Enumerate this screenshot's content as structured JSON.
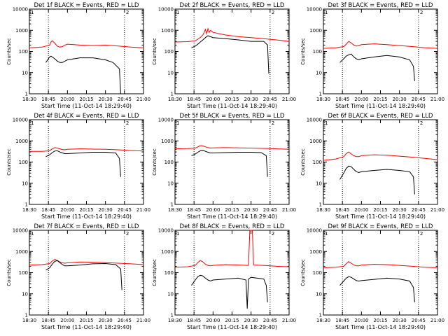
{
  "chart_data": [
    {
      "type": "line",
      "title": "Det 1f BLACK = Events, RED = LLD",
      "xlabel": "Start Time (11-Oct-14 18:29:40)",
      "ylabel": "Counts/sec",
      "ylim": [
        1,
        10000
      ],
      "yscale": "log",
      "x_tick_labels": [
        "18:30",
        "18:45",
        "20:00",
        "20:15",
        "20:30",
        "20:45",
        "21:00"
      ],
      "y_tick_labels": [
        "1",
        "10",
        "100",
        "1000",
        "10000"
      ],
      "markers": [
        "1",
        "2"
      ],
      "vlines": [
        "18:45",
        "20:45"
      ],
      "grid": false,
      "series": [
        {
          "color": "#ff0000",
          "x": [
            "18:30",
            "18:40",
            "18:50",
            "18:55",
            "19:00",
            "19:10",
            "19:20",
            "19:30",
            "19:40",
            "19:50",
            "20:00",
            "20:10",
            "20:20",
            "20:30",
            "20:40",
            "20:50",
            "21:00",
            "21:05"
          ],
          "values": [
            150,
            160,
            200,
            280,
            320,
            250,
            180,
            160,
            170,
            200,
            220,
            200,
            190,
            200,
            180,
            160,
            150,
            150
          ]
        },
        {
          "color": "#000000",
          "x": [
            "18:43",
            "18:50",
            "18:55",
            "19:00",
            "19:10",
            "19:20",
            "19:30",
            "19:40",
            "19:50",
            "20:00",
            "20:10",
            "20:20",
            "20:30",
            "20:36",
            "20:41",
            "20:42"
          ],
          "values": [
            30,
            55,
            60,
            55,
            45,
            35,
            30,
            30,
            35,
            40,
            50,
            50,
            40,
            30,
            15,
            1
          ]
        }
      ]
    },
    {
      "type": "line",
      "title": "Det 2f BLACK = Events, RED = LLD",
      "xlabel": "Start Time (11-Oct-14 18:29:40)",
      "ylabel": "Counts/sec",
      "ylim": [
        1,
        10000
      ],
      "yscale": "log",
      "x_tick_labels": [
        "18:30",
        "18:45",
        "20:00",
        "20:15",
        "20:30",
        "20:45",
        "21:00"
      ],
      "y_tick_labels": [
        "1",
        "10",
        "100",
        "1000",
        "10000"
      ],
      "markers": [
        "1",
        "2"
      ],
      "vlines": [
        "18:45",
        "20:45"
      ],
      "grid": false,
      "series": [
        {
          "color": "#ff0000",
          "x": [
            "18:30",
            "18:40",
            "18:50",
            "19:00",
            "19:10",
            "19:20",
            "19:25",
            "19:30",
            "19:35",
            "19:40",
            "19:45",
            "19:50",
            "19:55",
            "20:00",
            "20:10",
            "20:20",
            "20:30",
            "20:40",
            "20:50",
            "21:00",
            "21:05"
          ],
          "values": [
            280,
            290,
            320,
            380,
            460,
            600,
            800,
            1100,
            700,
            1200,
            800,
            1000,
            900,
            800,
            600,
            500,
            450,
            400,
            350,
            300,
            290
          ]
        },
        {
          "color": "#000000",
          "x": [
            "18:43",
            "18:50",
            "19:00",
            "19:10",
            "19:20",
            "19:30",
            "19:40",
            "19:50",
            "20:00",
            "20:10",
            "20:20",
            "20:30",
            "20:40",
            "20:43",
            "20:44"
          ],
          "values": [
            150,
            180,
            220,
            280,
            350,
            450,
            550,
            500,
            450,
            400,
            350,
            300,
            300,
            200,
            9
          ]
        }
      ]
    },
    {
      "type": "line",
      "title": "Det 3f BLACK = Events, RED = LLD",
      "xlabel": "Start Time (11-Oct-14 18:29:40)",
      "ylabel": "Counts/sec",
      "ylim": [
        1,
        10000
      ],
      "yscale": "log",
      "x_tick_labels": [
        "18:30",
        "18:45",
        "20:00",
        "20:15",
        "20:30",
        "20:45",
        "21:00"
      ],
      "y_tick_labels": [
        "1",
        "10",
        "100",
        "1000",
        "10000"
      ],
      "markers": [
        "1",
        "2"
      ],
      "vlines": [
        "18:45",
        "20:45"
      ],
      "grid": false,
      "series": [
        {
          "color": "#ff0000",
          "x": [
            "18:30",
            "18:40",
            "18:50",
            "19:00",
            "19:10",
            "19:20",
            "19:30",
            "19:40",
            "19:50",
            "20:00",
            "20:10",
            "20:20",
            "20:30",
            "20:40",
            "20:50",
            "21:00",
            "21:05"
          ],
          "values": [
            140,
            150,
            170,
            220,
            300,
            250,
            200,
            180,
            190,
            210,
            230,
            210,
            190,
            170,
            150,
            140,
            140
          ]
        },
        {
          "color": "#000000",
          "x": [
            "18:43",
            "18:50",
            "19:00",
            "19:10",
            "19:20",
            "19:30",
            "19:40",
            "19:50",
            "20:00",
            "20:10",
            "20:20",
            "20:30",
            "20:38",
            "20:41",
            "20:42"
          ],
          "values": [
            30,
            45,
            60,
            70,
            75,
            55,
            45,
            40,
            45,
            55,
            65,
            55,
            40,
            20,
            4
          ]
        }
      ]
    },
    {
      "type": "line",
      "title": "Det 4f BLACK = Events, RED = LLD",
      "xlabel": "Start Time (11-Oct-14 18:29:40)",
      "ylabel": "Counts/sec",
      "ylim": [
        1,
        10000
      ],
      "yscale": "log",
      "x_tick_labels": [
        "18:30",
        "18:45",
        "20:00",
        "20:15",
        "20:30",
        "20:45",
        "21:00"
      ],
      "y_tick_labels": [
        "1",
        "10",
        "100",
        "1000",
        "10000"
      ],
      "markers": [
        "1",
        "2"
      ],
      "vlines": [
        "18:45",
        "20:45"
      ],
      "grid": false,
      "series": [
        {
          "color": "#ff0000",
          "x": [
            "18:30",
            "18:40",
            "18:50",
            "19:00",
            "19:10",
            "19:20",
            "19:30",
            "19:40",
            "19:50",
            "20:00",
            "20:10",
            "20:20",
            "20:30",
            "20:40",
            "20:50",
            "21:00",
            "21:05"
          ],
          "values": [
            320,
            320,
            340,
            420,
            480,
            460,
            420,
            390,
            380,
            400,
            420,
            410,
            400,
            380,
            350,
            330,
            320
          ]
        },
        {
          "color": "#000000",
          "x": [
            "18:43",
            "18:50",
            "19:00",
            "19:10",
            "19:20",
            "19:30",
            "19:40",
            "19:50",
            "20:00",
            "20:10",
            "20:20",
            "20:30",
            "20:38",
            "20:41",
            "20:42"
          ],
          "values": [
            180,
            220,
            280,
            330,
            340,
            300,
            270,
            250,
            250,
            270,
            290,
            290,
            270,
            150,
            20
          ]
        }
      ]
    },
    {
      "type": "line",
      "title": "Det 5f BLACK = Events, RED = LLD",
      "xlabel": "Start Time (11-Oct-14 18:29:40)",
      "ylabel": "Counts/sec",
      "ylim": [
        1,
        10000
      ],
      "yscale": "log",
      "x_tick_labels": [
        "18:30",
        "18:45",
        "20:00",
        "20:15",
        "20:30",
        "20:45",
        "21:00"
      ],
      "y_tick_labels": [
        "1",
        "10",
        "100",
        "1000",
        "10000"
      ],
      "markers": [
        "1",
        "2"
      ],
      "vlines": [
        "18:45",
        "20:45"
      ],
      "grid": false,
      "series": [
        {
          "color": "#ff0000",
          "x": [
            "18:30",
            "18:40",
            "18:50",
            "19:00",
            "19:10",
            "19:20",
            "19:30",
            "19:40",
            "19:50",
            "20:00",
            "20:10",
            "20:20",
            "20:30",
            "20:40",
            "20:50",
            "21:00",
            "21:05"
          ],
          "values": [
            420,
            430,
            450,
            520,
            600,
            580,
            520,
            480,
            460,
            470,
            480,
            470,
            460,
            440,
            420,
            400,
            400
          ]
        },
        {
          "color": "#000000",
          "x": [
            "18:43",
            "18:50",
            "19:00",
            "19:10",
            "19:20",
            "19:30",
            "19:40",
            "19:50",
            "20:00",
            "20:10",
            "20:20",
            "20:30",
            "20:38",
            "20:42",
            "20:43"
          ],
          "values": [
            200,
            240,
            290,
            340,
            360,
            320,
            290,
            270,
            270,
            280,
            290,
            290,
            280,
            200,
            20
          ]
        }
      ]
    },
    {
      "type": "line",
      "title": "Det 6f BLACK = Events, RED = LLD",
      "xlabel": "Start Time (11-Oct-14 18:29:40)",
      "ylabel": "Counts/sec",
      "ylim": [
        1,
        10000
      ],
      "yscale": "log",
      "x_tick_labels": [
        "18:30",
        "18:45",
        "20:00",
        "20:15",
        "20:30",
        "20:45",
        "21:00"
      ],
      "y_tick_labels": [
        "1",
        "10",
        "100",
        "1000",
        "10000"
      ],
      "markers": [
        "1",
        "2"
      ],
      "vlines": [
        "18:45",
        "20:45"
      ],
      "grid": false,
      "series": [
        {
          "color": "#ff0000",
          "x": [
            "18:30",
            "18:40",
            "18:50",
            "19:00",
            "19:10",
            "19:20",
            "19:30",
            "19:40",
            "19:50",
            "20:00",
            "20:10",
            "20:20",
            "20:30",
            "20:40",
            "20:50",
            "21:00",
            "21:05"
          ],
          "values": [
            120,
            140,
            180,
            250,
            300,
            240,
            200,
            180,
            180,
            200,
            220,
            210,
            190,
            170,
            150,
            130,
            120
          ]
        },
        {
          "color": "#000000",
          "x": [
            "18:43",
            "18:50",
            "19:00",
            "19:10",
            "19:20",
            "19:30",
            "19:40",
            "19:50",
            "20:00",
            "20:10",
            "20:20",
            "20:30",
            "20:38",
            "20:41",
            "20:42"
          ],
          "values": [
            15,
            30,
            50,
            65,
            60,
            45,
            35,
            32,
            35,
            40,
            45,
            40,
            35,
            20,
            3
          ]
        }
      ]
    },
    {
      "type": "line",
      "title": "Det 7f BLACK = Events, RED = LLD",
      "xlabel": "Start Time (11-Oct-14 18:29:40)",
      "ylabel": "Counts/sec",
      "ylim": [
        1,
        10000
      ],
      "yscale": "log",
      "x_tick_labels": [
        "18:30",
        "18:45",
        "20:00",
        "20:15",
        "20:30",
        "20:45",
        "21:00"
      ],
      "y_tick_labels": [
        "1",
        "10",
        "100",
        "1000",
        "10000"
      ],
      "markers": [
        "1",
        "2"
      ],
      "vlines": [
        "18:45",
        "20:45"
      ],
      "grid": false,
      "series": [
        {
          "color": "#ff0000",
          "x": [
            "18:30",
            "18:40",
            "18:50",
            "19:00",
            "19:10",
            "19:20",
            "19:30",
            "19:40",
            "19:50",
            "20:00",
            "20:10",
            "20:20",
            "20:30",
            "20:40",
            "20:50",
            "21:00",
            "21:05"
          ],
          "values": [
            230,
            240,
            270,
            350,
            420,
            380,
            320,
            290,
            280,
            290,
            320,
            310,
            300,
            280,
            260,
            240,
            230
          ]
        },
        {
          "color": "#000000",
          "x": [
            "18:43",
            "18:50",
            "19:00",
            "19:10",
            "19:20",
            "19:30",
            "19:40",
            "19:50",
            "20:00",
            "20:10",
            "20:20",
            "20:30",
            "20:38",
            "20:42",
            "20:43"
          ],
          "values": [
            130,
            170,
            250,
            340,
            370,
            300,
            240,
            210,
            210,
            230,
            260,
            270,
            240,
            150,
            15
          ]
        }
      ]
    },
    {
      "type": "line",
      "title": "Det 8f BLACK = Events, RED = LLD",
      "xlabel": "Start Time (11-Oct-14 18:29:40)",
      "ylabel": "Counts/sec",
      "ylim": [
        1,
        10000
      ],
      "yscale": "log",
      "x_tick_labels": [
        "18:30",
        "18:45",
        "20:00",
        "20:15",
        "20:30",
        "20:45",
        "21:00"
      ],
      "y_tick_labels": [
        "1",
        "10",
        "100",
        "1000",
        "10000"
      ],
      "markers": [
        "1",
        "2"
      ],
      "vlines": [
        "18:45",
        "20:45"
      ],
      "grid": false,
      "series": [
        {
          "color": "#ff0000",
          "x": [
            "18:30",
            "18:40",
            "18:50",
            "19:00",
            "19:10",
            "19:20",
            "19:30",
            "19:40",
            "19:50",
            "20:00",
            "20:10",
            "20:20",
            "20:28",
            "20:29",
            "20:31",
            "20:32",
            "20:40",
            "20:50",
            "21:00",
            "21:05"
          ],
          "values": [
            180,
            190,
            220,
            300,
            380,
            320,
            250,
            220,
            210,
            220,
            240,
            230,
            220,
            10000,
            10000,
            230,
            220,
            200,
            190,
            180
          ]
        },
        {
          "color": "#000000",
          "x": [
            "18:43",
            "18:50",
            "19:00",
            "19:10",
            "19:20",
            "19:30",
            "19:40",
            "19:50",
            "20:00",
            "20:10",
            "20:20",
            "20:26",
            "20:27",
            "20:28",
            "20:30",
            "20:35",
            "20:40",
            "20:42",
            "20:43"
          ],
          "values": [
            25,
            45,
            65,
            75,
            70,
            55,
            45,
            40,
            45,
            50,
            55,
            45,
            2,
            50,
            60,
            55,
            50,
            25,
            4
          ]
        }
      ]
    },
    {
      "type": "line",
      "title": "Det 9f BLACK = Events, RED = LLD",
      "xlabel": "Start Time (11-Oct-14 18:29:40)",
      "ylabel": "Counts/sec",
      "ylim": [
        1,
        10000
      ],
      "yscale": "log",
      "x_tick_labels": [
        "18:30",
        "18:45",
        "20:00",
        "20:15",
        "20:30",
        "20:45",
        "21:00"
      ],
      "y_tick_labels": [
        "1",
        "10",
        "100",
        "1000",
        "10000"
      ],
      "markers": [
        "1",
        "2"
      ],
      "vlines": [
        "18:45",
        "20:45"
      ],
      "grid": false,
      "series": [
        {
          "color": "#ff0000",
          "x": [
            "18:30",
            "18:40",
            "18:50",
            "19:00",
            "19:10",
            "19:20",
            "19:30",
            "19:40",
            "19:50",
            "20:00",
            "20:10",
            "20:20",
            "20:30",
            "20:40",
            "20:50",
            "21:00",
            "21:05"
          ],
          "values": [
            170,
            180,
            200,
            260,
            330,
            280,
            230,
            210,
            210,
            230,
            250,
            240,
            220,
            200,
            180,
            170,
            170
          ]
        },
        {
          "color": "#000000",
          "x": [
            "18:43",
            "18:50",
            "19:00",
            "19:10",
            "19:20",
            "19:30",
            "19:40",
            "19:50",
            "20:00",
            "20:10",
            "20:20",
            "20:30",
            "20:38",
            "20:41",
            "20:42"
          ],
          "values": [
            25,
            40,
            55,
            65,
            60,
            50,
            42,
            40,
            42,
            48,
            55,
            50,
            40,
            20,
            4
          ]
        }
      ]
    }
  ]
}
